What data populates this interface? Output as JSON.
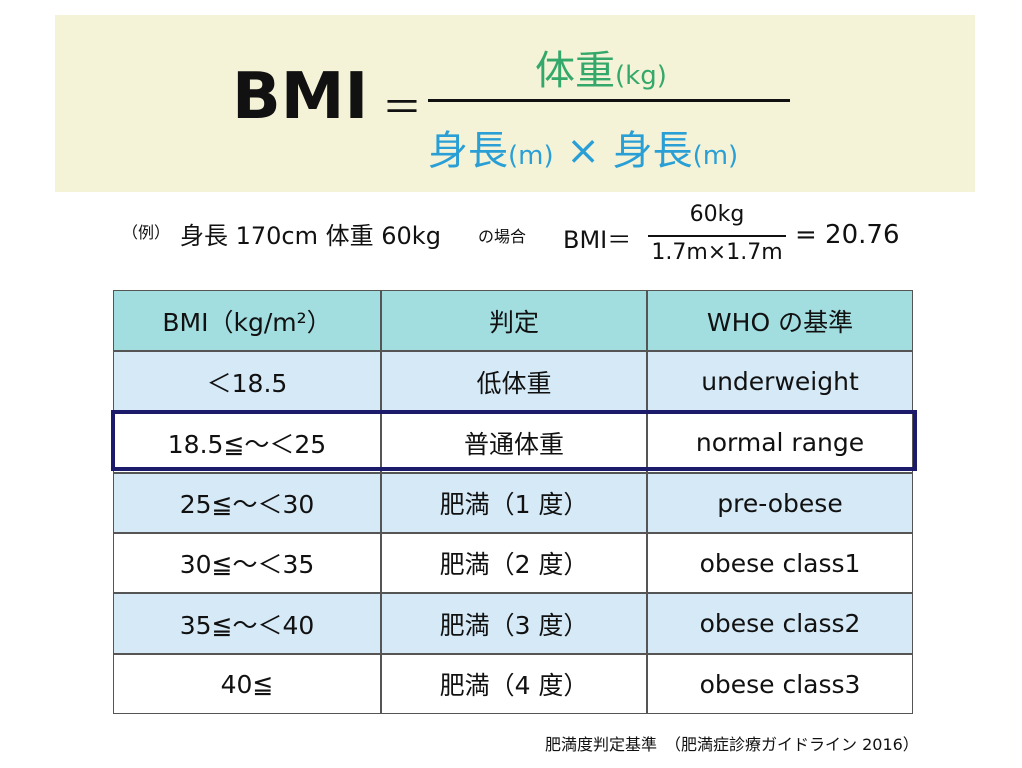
{
  "formula": {
    "lhs": "BMI",
    "equals": "＝",
    "numerator": {
      "text": "体重",
      "unit": "(kg)"
    },
    "denominator": {
      "text1": "身長",
      "unit1": "(m)",
      "times": "×",
      "text2": "身長",
      "unit2": "(m)"
    }
  },
  "example": {
    "prefix": "（例）",
    "condition": "身長 170cm 体重 60kg",
    "suffix": "の場合",
    "lhs": "BMI＝",
    "numerator": "60kg",
    "denominator": "1.7m×1.7m",
    "result": "= 20.76"
  },
  "table": {
    "header": [
      "BMI（kg/m²）",
      "判定",
      "WHO の基準"
    ],
    "rows": [
      [
        "＜18.5",
        "低体重",
        "underweight"
      ],
      [
        "18.5≦～＜25",
        "普通体重",
        "normal range"
      ],
      [
        "25≦～＜30",
        "肥満（1 度）",
        "pre-obese"
      ],
      [
        "30≦～＜35",
        "肥満（2 度）",
        "obese class1"
      ],
      [
        "35≦～＜40",
        "肥満（3 度）",
        "obese class2"
      ],
      [
        "40≦",
        "肥満（4 度）",
        "obese class3"
      ]
    ]
  },
  "caption": "肥満度判定基準　（肥満症診療ガイドライン 2016）"
}
